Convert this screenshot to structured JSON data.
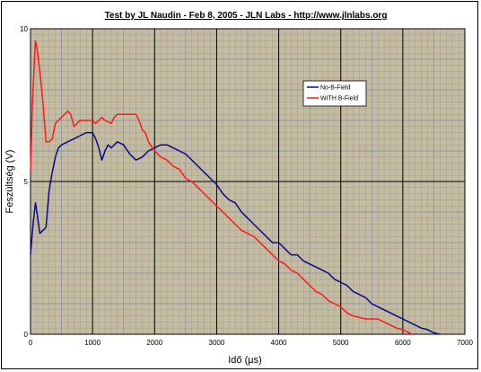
{
  "chart_data": {
    "type": "line",
    "title": "Test by JL Naudin - Feb 8, 2005 - JLN Labs - http://www.jlnlabs.org",
    "xlabel": "Idő (µs)",
    "ylabel": "Feszültség (V)",
    "xlim": [
      0,
      7000
    ],
    "ylim": [
      0,
      10
    ],
    "x_ticks": [
      "0",
      "1000",
      "2000",
      "3000",
      "4000",
      "5000",
      "6000",
      "7000"
    ],
    "y_ticks": [
      "0",
      "5",
      "10"
    ],
    "grid": true,
    "legend_position": "top-right",
    "colors": {
      "plot_background": "#c4bca2",
      "grid": "#000000",
      "no_field": "#0a0a8c",
      "with_field": "#ff1a1a"
    },
    "series": [
      {
        "name": "No-B-Field",
        "color": "#0a0a8c",
        "points": [
          [
            0,
            2.6
          ],
          [
            40,
            3.6
          ],
          [
            80,
            4.3
          ],
          [
            110,
            3.9
          ],
          [
            150,
            3.3
          ],
          [
            200,
            3.4
          ],
          [
            250,
            3.5
          ],
          [
            300,
            4.7
          ],
          [
            350,
            5.3
          ],
          [
            400,
            5.8
          ],
          [
            450,
            6.1
          ],
          [
            500,
            6.2
          ],
          [
            600,
            6.3
          ],
          [
            700,
            6.4
          ],
          [
            800,
            6.5
          ],
          [
            900,
            6.6
          ],
          [
            1000,
            6.6
          ],
          [
            1050,
            6.4
          ],
          [
            1100,
            6.1
          ],
          [
            1150,
            5.7
          ],
          [
            1200,
            6.0
          ],
          [
            1250,
            6.2
          ],
          [
            1300,
            6.1
          ],
          [
            1400,
            6.3
          ],
          [
            1500,
            6.2
          ],
          [
            1600,
            5.9
          ],
          [
            1700,
            5.7
          ],
          [
            1800,
            5.8
          ],
          [
            1900,
            6.0
          ],
          [
            2000,
            6.1
          ],
          [
            2100,
            6.2
          ],
          [
            2200,
            6.2
          ],
          [
            2300,
            6.1
          ],
          [
            2400,
            6.0
          ],
          [
            2500,
            5.9
          ],
          [
            2600,
            5.7
          ],
          [
            2700,
            5.5
          ],
          [
            2800,
            5.3
          ],
          [
            2900,
            5.1
          ],
          [
            3000,
            4.9
          ],
          [
            3100,
            4.6
          ],
          [
            3200,
            4.4
          ],
          [
            3300,
            4.3
          ],
          [
            3400,
            4.0
          ],
          [
            3500,
            3.8
          ],
          [
            3600,
            3.6
          ],
          [
            3700,
            3.4
          ],
          [
            3800,
            3.2
          ],
          [
            3900,
            3.0
          ],
          [
            4000,
            3.0
          ],
          [
            4100,
            2.8
          ],
          [
            4200,
            2.6
          ],
          [
            4300,
            2.6
          ],
          [
            4400,
            2.4
          ],
          [
            4500,
            2.3
          ],
          [
            4600,
            2.2
          ],
          [
            4700,
            2.1
          ],
          [
            4800,
            2.0
          ],
          [
            4900,
            1.8
          ],
          [
            5000,
            1.7
          ],
          [
            5100,
            1.6
          ],
          [
            5200,
            1.4
          ],
          [
            5300,
            1.3
          ],
          [
            5400,
            1.2
          ],
          [
            5500,
            1.0
          ],
          [
            5600,
            0.9
          ],
          [
            5700,
            0.8
          ],
          [
            5800,
            0.7
          ],
          [
            5900,
            0.6
          ],
          [
            6000,
            0.5
          ],
          [
            6100,
            0.4
          ],
          [
            6200,
            0.3
          ],
          [
            6300,
            0.2
          ],
          [
            6400,
            0.15
          ],
          [
            6500,
            0.05
          ],
          [
            6600,
            0.0
          ]
        ]
      },
      {
        "name": "WITH B-Field",
        "color": "#ff1a1a",
        "points": [
          [
            0,
            5.3
          ],
          [
            30,
            7.5
          ],
          [
            60,
            8.8
          ],
          [
            80,
            9.6
          ],
          [
            110,
            9.3
          ],
          [
            150,
            8.6
          ],
          [
            200,
            7.6
          ],
          [
            250,
            6.3
          ],
          [
            300,
            6.3
          ],
          [
            350,
            6.4
          ],
          [
            400,
            6.9
          ],
          [
            450,
            7.0
          ],
          [
            500,
            7.1
          ],
          [
            550,
            7.2
          ],
          [
            600,
            7.3
          ],
          [
            650,
            7.2
          ],
          [
            700,
            6.8
          ],
          [
            750,
            6.9
          ],
          [
            800,
            7.0
          ],
          [
            900,
            7.0
          ],
          [
            1000,
            7.0
          ],
          [
            1050,
            6.9
          ],
          [
            1100,
            7.0
          ],
          [
            1150,
            7.1
          ],
          [
            1200,
            7.0
          ],
          [
            1300,
            6.9
          ],
          [
            1350,
            7.1
          ],
          [
            1400,
            7.2
          ],
          [
            1500,
            7.2
          ],
          [
            1600,
            7.2
          ],
          [
            1700,
            7.2
          ],
          [
            1750,
            7.0
          ],
          [
            1800,
            6.7
          ],
          [
            1850,
            6.6
          ],
          [
            1900,
            6.3
          ],
          [
            2000,
            6.0
          ],
          [
            2100,
            5.8
          ],
          [
            2200,
            5.7
          ],
          [
            2300,
            5.5
          ],
          [
            2400,
            5.4
          ],
          [
            2500,
            5.1
          ],
          [
            2600,
            5.0
          ],
          [
            2700,
            4.8
          ],
          [
            2800,
            4.6
          ],
          [
            2900,
            4.4
          ],
          [
            3000,
            4.2
          ],
          [
            3100,
            4.0
          ],
          [
            3200,
            3.8
          ],
          [
            3300,
            3.6
          ],
          [
            3400,
            3.4
          ],
          [
            3500,
            3.3
          ],
          [
            3600,
            3.2
          ],
          [
            3700,
            3.0
          ],
          [
            3800,
            2.8
          ],
          [
            3900,
            2.6
          ],
          [
            4000,
            2.4
          ],
          [
            4100,
            2.3
          ],
          [
            4200,
            2.1
          ],
          [
            4300,
            2.0
          ],
          [
            4400,
            1.8
          ],
          [
            4500,
            1.6
          ],
          [
            4600,
            1.4
          ],
          [
            4700,
            1.3
          ],
          [
            4800,
            1.1
          ],
          [
            4900,
            1.0
          ],
          [
            5000,
            0.9
          ],
          [
            5100,
            0.7
          ],
          [
            5200,
            0.6
          ],
          [
            5300,
            0.55
          ],
          [
            5400,
            0.5
          ],
          [
            5500,
            0.5
          ],
          [
            5600,
            0.5
          ],
          [
            5700,
            0.4
          ],
          [
            5800,
            0.3
          ],
          [
            5900,
            0.2
          ],
          [
            6000,
            0.15
          ],
          [
            6100,
            0.05
          ],
          [
            6150,
            0.0
          ]
        ]
      }
    ]
  }
}
